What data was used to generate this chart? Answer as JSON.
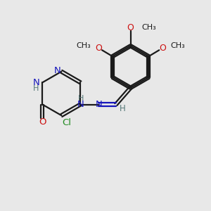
{
  "bg_color": "#e8e8e8",
  "bond_color": "#1a1a1a",
  "N_color": "#1515bb",
  "O_color": "#cc1010",
  "Cl_color": "#228B22",
  "H_color": "#557777",
  "C_color": "#1a1a1a",
  "line_width": 1.6,
  "figsize": [
    3.0,
    3.0
  ],
  "dpi": 100,
  "xlim": [
    0,
    10
  ],
  "ylim": [
    0,
    10
  ]
}
